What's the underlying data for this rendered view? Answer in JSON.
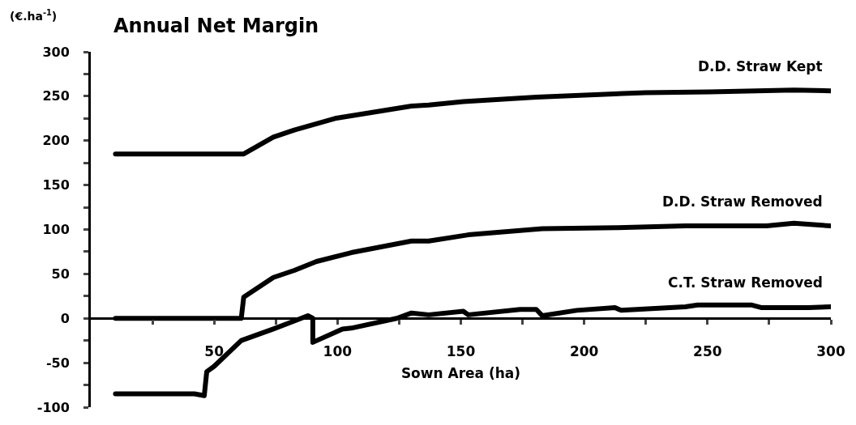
{
  "chart_data": {
    "type": "line",
    "title": "Annual Net Margin",
    "ylabel": "(€.ha$^{-1}$)",
    "xlabel": "Sown Area (ha)",
    "xlim": [
      0,
      300
    ],
    "ylim": [
      -100,
      300
    ],
    "xticks": [
      {
        "value": 25,
        "label": null
      },
      50,
      {
        "value": 75,
        "label": null
      },
      100,
      {
        "value": 125,
        "label": null
      },
      150,
      {
        "value": 175,
        "label": null
      },
      200,
      {
        "value": 225,
        "label": null
      },
      250,
      {
        "value": 275,
        "label": null
      },
      300
    ],
    "yticks": [
      -100,
      {
        "value": -75,
        "label": null
      },
      -50,
      {
        "value": -25,
        "label": null
      },
      0,
      {
        "value": 25,
        "label": null
      },
      50,
      {
        "value": 75,
        "label": null
      },
      100,
      {
        "value": 125,
        "label": null
      },
      150,
      {
        "value": 175,
        "label": null
      },
      200,
      {
        "value": 225,
        "label": null
      },
      250,
      {
        "value": 275,
        "label": null
      },
      300
    ],
    "legend": false,
    "marker": "none",
    "line_style": "solid",
    "series": [
      {
        "name": "D.D. Straw Kept",
        "color": "#000000",
        "x": [
          10,
          62,
          74,
          82.5,
          99,
          130,
          137,
          151,
          180.6,
          224.7,
          251,
          285,
          300
        ],
        "values": [
          185,
          185,
          204,
          212,
          225,
          239,
          240,
          244,
          249,
          254,
          255,
          257,
          256
        ]
      },
      {
        "name": "D.D. Straw Removed",
        "color": "#000000",
        "x": [
          10,
          61,
          62,
          74,
          82.5,
          91.5,
          105.6,
          130,
          137,
          153,
          183,
          213,
          241,
          274,
          285,
          300
        ],
        "values": [
          0,
          0,
          24,
          46,
          54,
          64,
          74,
          87,
          87,
          94,
          101,
          102,
          104,
          104,
          107,
          104
        ]
      },
      {
        "name": "C.T. Straw Removed",
        "color": "#000000",
        "x": [
          10,
          42,
          46,
          47,
          50,
          61,
          74,
          82.5,
          88,
          90,
          90,
          102,
          105.6,
          124,
          130,
          137,
          151,
          153,
          174,
          180.6,
          183,
          197,
          212.5,
          215,
          241,
          246,
          268,
          272,
          291,
          300
        ],
        "values": [
          -85,
          -85,
          -87,
          -60,
          -54,
          -25,
          -12,
          -3,
          3,
          0,
          -27,
          -12,
          -11,
          0,
          6,
          4,
          8,
          4,
          10,
          10,
          3,
          9,
          12,
          9,
          13,
          15,
          15,
          12,
          12,
          13
        ]
      }
    ]
  }
}
